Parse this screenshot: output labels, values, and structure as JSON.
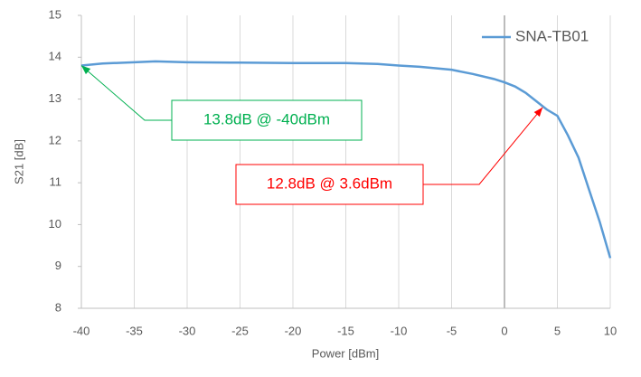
{
  "chart_data": {
    "type": "line",
    "x_label": "Power [dBm]",
    "y_label": "S21 [dB]",
    "x": [
      -40,
      -38,
      -35,
      -33,
      -30,
      -25,
      -20,
      -15,
      -12,
      -10,
      -8,
      -5,
      -3,
      -1,
      0,
      1,
      2,
      3,
      4,
      5,
      6,
      7,
      8,
      9,
      10
    ],
    "series": [
      {
        "name": "SNA-TB01",
        "color": "#5b9bd5",
        "values": [
          13.8,
          13.85,
          13.88,
          13.9,
          13.88,
          13.87,
          13.86,
          13.86,
          13.84,
          13.8,
          13.77,
          13.7,
          13.6,
          13.48,
          13.4,
          13.3,
          13.15,
          12.95,
          12.75,
          12.6,
          12.13,
          11.6,
          10.83,
          10.07,
          9.2
        ]
      }
    ],
    "xlim": [
      -40,
      10
    ],
    "xticks": [
      -40,
      -35,
      -30,
      -25,
      -20,
      -15,
      -10,
      -5,
      0,
      5,
      10
    ],
    "ylim": [
      8,
      15
    ],
    "yticks": [
      8,
      9,
      10,
      11,
      12,
      13,
      14,
      15
    ],
    "grid": "x",
    "legend": "top-right",
    "annotations": [
      {
        "text": "13.8dB @ -40dBm",
        "color": "#00b050",
        "x": -40,
        "y": 13.8
      },
      {
        "text": "12.8dB @ 3.6dBm",
        "color": "#ff0000",
        "x": 3.6,
        "y": 12.8
      }
    ]
  }
}
